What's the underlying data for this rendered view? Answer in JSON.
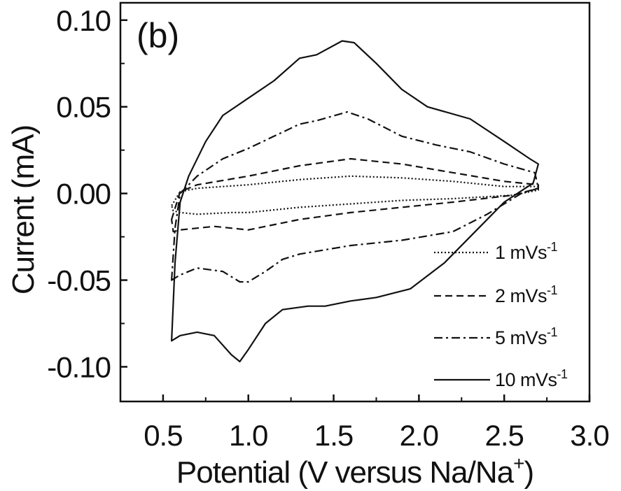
{
  "chart_data": {
    "type": "line",
    "panel_label": "(b)",
    "xlabel": "Potential (V versus Na/Na",
    "xlabel_sup": "+",
    "xlabel_end": ")",
    "ylabel": "Current (mA)",
    "xlim": [
      0.25,
      3.0
    ],
    "ylim": [
      -0.12,
      0.11
    ],
    "x_ticks": [
      "0.5",
      "1.0",
      "1.5",
      "2.0",
      "2.5",
      "3.0"
    ],
    "y_ticks": [
      "0.10",
      "0.05",
      "0.00",
      "-0.05",
      "-0.10"
    ],
    "grid": false,
    "legend_position": "bottom-right",
    "series": [
      {
        "name": "1 mVs",
        "name_sup": "-1",
        "dash": "dotted",
        "points": [
          [
            0.55,
            -0.007
          ],
          [
            0.6,
            0.001
          ],
          [
            0.7,
            0.003
          ],
          [
            1.0,
            0.005
          ],
          [
            1.3,
            0.008
          ],
          [
            1.6,
            0.01
          ],
          [
            1.9,
            0.009
          ],
          [
            2.2,
            0.007
          ],
          [
            2.5,
            0.004
          ],
          [
            2.7,
            0.004
          ],
          [
            2.7,
            0.002
          ],
          [
            2.55,
            -0.001
          ],
          [
            2.2,
            -0.003
          ],
          [
            1.9,
            -0.004
          ],
          [
            1.6,
            -0.006
          ],
          [
            1.3,
            -0.008
          ],
          [
            1.0,
            -0.011
          ],
          [
            0.9,
            -0.011
          ],
          [
            0.7,
            -0.012
          ],
          [
            0.6,
            -0.011
          ],
          [
            0.56,
            -0.01
          ],
          [
            0.55,
            -0.007
          ]
        ]
      },
      {
        "name": "2 mVs",
        "name_sup": "-1",
        "dash": "dashed",
        "points": [
          [
            0.55,
            -0.015
          ],
          [
            0.6,
            0.001
          ],
          [
            0.7,
            0.005
          ],
          [
            1.0,
            0.01
          ],
          [
            1.3,
            0.016
          ],
          [
            1.6,
            0.02
          ],
          [
            1.9,
            0.017
          ],
          [
            2.2,
            0.012
          ],
          [
            2.5,
            0.007
          ],
          [
            2.7,
            0.005
          ],
          [
            2.7,
            0.003
          ],
          [
            2.55,
            -0.001
          ],
          [
            2.2,
            -0.005
          ],
          [
            1.9,
            -0.008
          ],
          [
            1.6,
            -0.011
          ],
          [
            1.3,
            -0.015
          ],
          [
            1.0,
            -0.021
          ],
          [
            0.9,
            -0.02
          ],
          [
            0.8,
            -0.019
          ],
          [
            0.7,
            -0.02
          ],
          [
            0.6,
            -0.021
          ],
          [
            0.56,
            -0.022
          ],
          [
            0.55,
            -0.015
          ]
        ]
      },
      {
        "name": "5 mVs",
        "name_sup": "-1",
        "dash": "dashdot",
        "points": [
          [
            0.55,
            -0.05
          ],
          [
            0.57,
            -0.02
          ],
          [
            0.6,
            0.0
          ],
          [
            0.7,
            0.01
          ],
          [
            0.85,
            0.02
          ],
          [
            1.0,
            0.026
          ],
          [
            1.15,
            0.033
          ],
          [
            1.3,
            0.04
          ],
          [
            1.4,
            0.042
          ],
          [
            1.58,
            0.047
          ],
          [
            1.7,
            0.043
          ],
          [
            1.9,
            0.033
          ],
          [
            2.1,
            0.028
          ],
          [
            2.3,
            0.024
          ],
          [
            2.5,
            0.017
          ],
          [
            2.68,
            0.012
          ],
          [
            2.7,
            0.003
          ],
          [
            2.6,
            0.0
          ],
          [
            2.4,
            -0.012
          ],
          [
            2.2,
            -0.022
          ],
          [
            1.9,
            -0.027
          ],
          [
            1.6,
            -0.03
          ],
          [
            1.3,
            -0.035
          ],
          [
            1.2,
            -0.038
          ],
          [
            1.1,
            -0.045
          ],
          [
            1.0,
            -0.051
          ],
          [
            0.95,
            -0.051
          ],
          [
            0.85,
            -0.045
          ],
          [
            0.7,
            -0.043
          ],
          [
            0.6,
            -0.047
          ],
          [
            0.55,
            -0.05
          ]
        ]
      },
      {
        "name": "10 mVs",
        "name_sup": "-1",
        "dash": "solid",
        "points": [
          [
            0.55,
            -0.085
          ],
          [
            0.57,
            -0.04
          ],
          [
            0.6,
            -0.005
          ],
          [
            0.65,
            0.01
          ],
          [
            0.75,
            0.03
          ],
          [
            0.85,
            0.045
          ],
          [
            1.0,
            0.055
          ],
          [
            1.15,
            0.065
          ],
          [
            1.3,
            0.078
          ],
          [
            1.4,
            0.08
          ],
          [
            1.55,
            0.088
          ],
          [
            1.62,
            0.087
          ],
          [
            1.75,
            0.075
          ],
          [
            1.9,
            0.06
          ],
          [
            2.05,
            0.05
          ],
          [
            2.3,
            0.043
          ],
          [
            2.5,
            0.03
          ],
          [
            2.65,
            0.02
          ],
          [
            2.7,
            0.017
          ],
          [
            2.67,
            0.006
          ],
          [
            2.5,
            -0.005
          ],
          [
            2.35,
            -0.02
          ],
          [
            2.15,
            -0.04
          ],
          [
            1.95,
            -0.055
          ],
          [
            1.75,
            -0.06
          ],
          [
            1.6,
            -0.062
          ],
          [
            1.45,
            -0.065
          ],
          [
            1.35,
            -0.065
          ],
          [
            1.2,
            -0.067
          ],
          [
            1.1,
            -0.075
          ],
          [
            1.0,
            -0.09
          ],
          [
            0.95,
            -0.097
          ],
          [
            0.9,
            -0.093
          ],
          [
            0.8,
            -0.082
          ],
          [
            0.7,
            -0.08
          ],
          [
            0.6,
            -0.082
          ],
          [
            0.55,
            -0.085
          ]
        ]
      }
    ]
  }
}
